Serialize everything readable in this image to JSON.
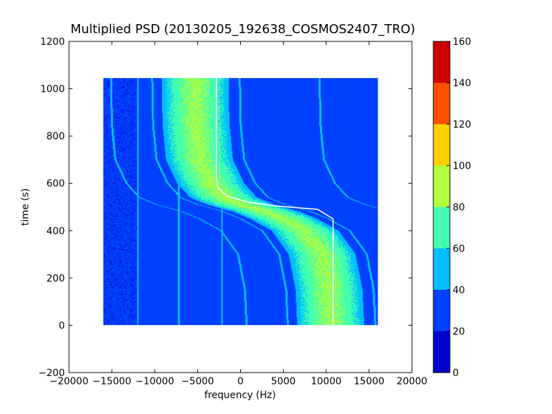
{
  "chart_data": {
    "type": "heatmap",
    "title": "Multiplied PSD (20130205_192638_COSMOS2407_TRO)",
    "xlabel": "frequency (Hz)",
    "ylabel": "time (s)",
    "xlim": [
      -20000,
      20000
    ],
    "ylim": [
      -200,
      1200
    ],
    "x_ticks": [
      -20000,
      -15000,
      -10000,
      -5000,
      0,
      5000,
      10000,
      15000,
      20000
    ],
    "x_tick_labels": [
      "−20000",
      "−15000",
      "−10000",
      "−5000",
      "0",
      "5000",
      "10000",
      "15000",
      "20000"
    ],
    "y_ticks": [
      -200,
      0,
      200,
      400,
      600,
      800,
      1000,
      1200
    ],
    "y_tick_labels": [
      "−200",
      "0",
      "200",
      "400",
      "600",
      "800",
      "1000",
      "1200"
    ],
    "data_extent": {
      "x": [
        -16000,
        16000
      ],
      "y": [
        0,
        1045
      ]
    },
    "grid": false,
    "colorbar": {
      "min": 0,
      "max": 160,
      "ticks": [
        0,
        20,
        40,
        60,
        80,
        100,
        120,
        140,
        160
      ],
      "tick_labels": [
        "0",
        "20",
        "40",
        "60",
        "80",
        "100",
        "120",
        "140",
        "160"
      ],
      "levels": [
        {
          "from": 0,
          "to": 20,
          "color": "#0000cd"
        },
        {
          "from": 20,
          "to": 40,
          "color": "#0040ff"
        },
        {
          "from": 40,
          "to": 60,
          "color": "#00c0ff"
        },
        {
          "from": 60,
          "to": 80,
          "color": "#40ffb0"
        },
        {
          "from": 80,
          "to": 100,
          "color": "#b0ff40"
        },
        {
          "from": 100,
          "to": 120,
          "color": "#ffd000"
        },
        {
          "from": 120,
          "to": 140,
          "color": "#ff5000"
        },
        {
          "from": 140,
          "to": 160,
          "color": "#cd0000"
        }
      ]
    },
    "background_level": 30,
    "main_band": {
      "description": "Doppler S-curve of the carrier",
      "center_curve": [
        {
          "time": 0,
          "frequency": 10500
        },
        {
          "time": 150,
          "frequency": 10300
        },
        {
          "time": 300,
          "frequency": 9500
        },
        {
          "time": 400,
          "frequency": 7500
        },
        {
          "time": 450,
          "frequency": 5000
        },
        {
          "time": 480,
          "frequency": 3000
        },
        {
          "time": 510,
          "frequency": 0
        },
        {
          "time": 540,
          "frequency": -2000
        },
        {
          "time": 600,
          "frequency": -3500
        },
        {
          "time": 700,
          "frequency": -4800
        },
        {
          "time": 850,
          "frequency": -5200
        },
        {
          "time": 1045,
          "frequency": -5300
        }
      ],
      "half_width_hz": 3400,
      "core_level": 85,
      "edge_level": 55
    },
    "white_trace": [
      {
        "time": 0,
        "frequency": 10800
      },
      {
        "time": 450,
        "frequency": 10800
      },
      {
        "time": 490,
        "frequency": 9000
      },
      {
        "time": 505,
        "frequency": 4000
      },
      {
        "time": 520,
        "frequency": 1000
      },
      {
        "time": 545,
        "frequency": -1500
      },
      {
        "time": 580,
        "frequency": -2600
      },
      {
        "time": 620,
        "frequency": -2800
      },
      {
        "time": 1045,
        "frequency": -2800
      }
    ],
    "side_traces": [
      {
        "offset_hz": 5200,
        "level": 55
      },
      {
        "offset_hz": -5000,
        "level": 50
      },
      {
        "offset_hz": -9800,
        "level": 45
      },
      {
        "offset_hz": 14500,
        "level": 45
      }
    ],
    "vertical_lines": [
      {
        "frequency": -12000,
        "level": 45
      },
      {
        "frequency": -7200,
        "level": 48
      },
      {
        "frequency": -2200,
        "level": 45
      }
    ]
  }
}
